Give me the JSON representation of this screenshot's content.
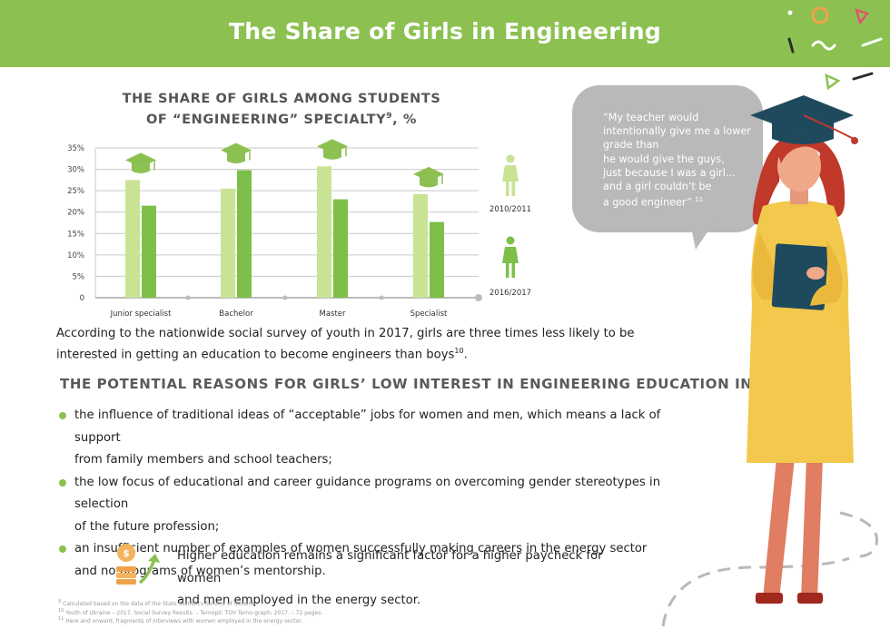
{
  "header": {
    "title": "The Share of Girls in Engineering"
  },
  "chart_title": {
    "line1": "THE SHARE OF GIRLS AMONG STUDENTS",
    "line2_pre": "OF “ENGINEERING” SPECIALTY",
    "line2_sup": "9",
    "line2_post": ", %"
  },
  "chart_data": {
    "type": "bar",
    "categories": [
      "Junior specialist",
      "Bachelor",
      "Master",
      "Specialist"
    ],
    "series": [
      {
        "name": "2010/2011",
        "values": [
          27.5,
          25.5,
          30.7,
          24.2
        ],
        "color": "#c8e393"
      },
      {
        "name": "2016/2017",
        "values": [
          21.5,
          29.8,
          23.0,
          17.7
        ],
        "color": "#7dbf48"
      }
    ],
    "y_ticks": [
      "0",
      "5%",
      "10%",
      "15%",
      "20%",
      "25%",
      "30%",
      "35%"
    ],
    "ylim": [
      0,
      35
    ],
    "grid": true,
    "legend_position": "right"
  },
  "intro": {
    "text": "According to the nationwide social survey of youth in 2017, girls are three times less likely to be interested in getting an education to become engineers than boys",
    "sup": "10",
    "end": "."
  },
  "reasons": {
    "title": "THE POTENTIAL REASONS FOR GIRLS’ LOW INTEREST IN ENGINEERING EDUCATION INCLUDE:",
    "items": [
      {
        "line1": "the influence of traditional ideas of “acceptable” jobs for women and men, which means a lack of support",
        "line2": "from family members and school teachers;"
      },
      {
        "line1": "the low focus of educational and career guidance programs on overcoming gender stereotypes in selection",
        "line2": "of the future profession;"
      },
      {
        "line1": "an insufficient number of examples of women successfully making careers in the energy sector",
        "line2": "and no programs of women’s mentorship."
      }
    ]
  },
  "money": {
    "line1": "Higher education remains a significant factor for a higher paycheck for women",
    "line2": "and men employed in the energy sector."
  },
  "footnotes": [
    {
      "n": "9",
      "text": "Calculated based on the data of the State Statistics Service of Ukraine."
    },
    {
      "n": "10",
      "text": "Youth of Ukraine – 2017. Social Survey Results. – Ternopil: TOV Terno-graph, 2017. – 72 pages."
    },
    {
      "n": "11",
      "text": "Here and onward, fragments of interviews with women employed in the energy sector."
    }
  ],
  "quote": {
    "lines": [
      "“My teacher would",
      "intentionally give me a lower",
      "grade than",
      "he would give the guys,",
      "just because I was a girl…",
      "and a girl couldn’t be",
      "a good engineer”"
    ],
    "sup": "11"
  },
  "colors": {
    "green": "#8cc152",
    "light_bar": "#c8e393",
    "dark_bar": "#7dbf48",
    "gray_bubble": "#b9b9b9"
  },
  "icons": [
    "graduation-cap-icon",
    "woman-figure-icon",
    "money-growth-icon"
  ]
}
